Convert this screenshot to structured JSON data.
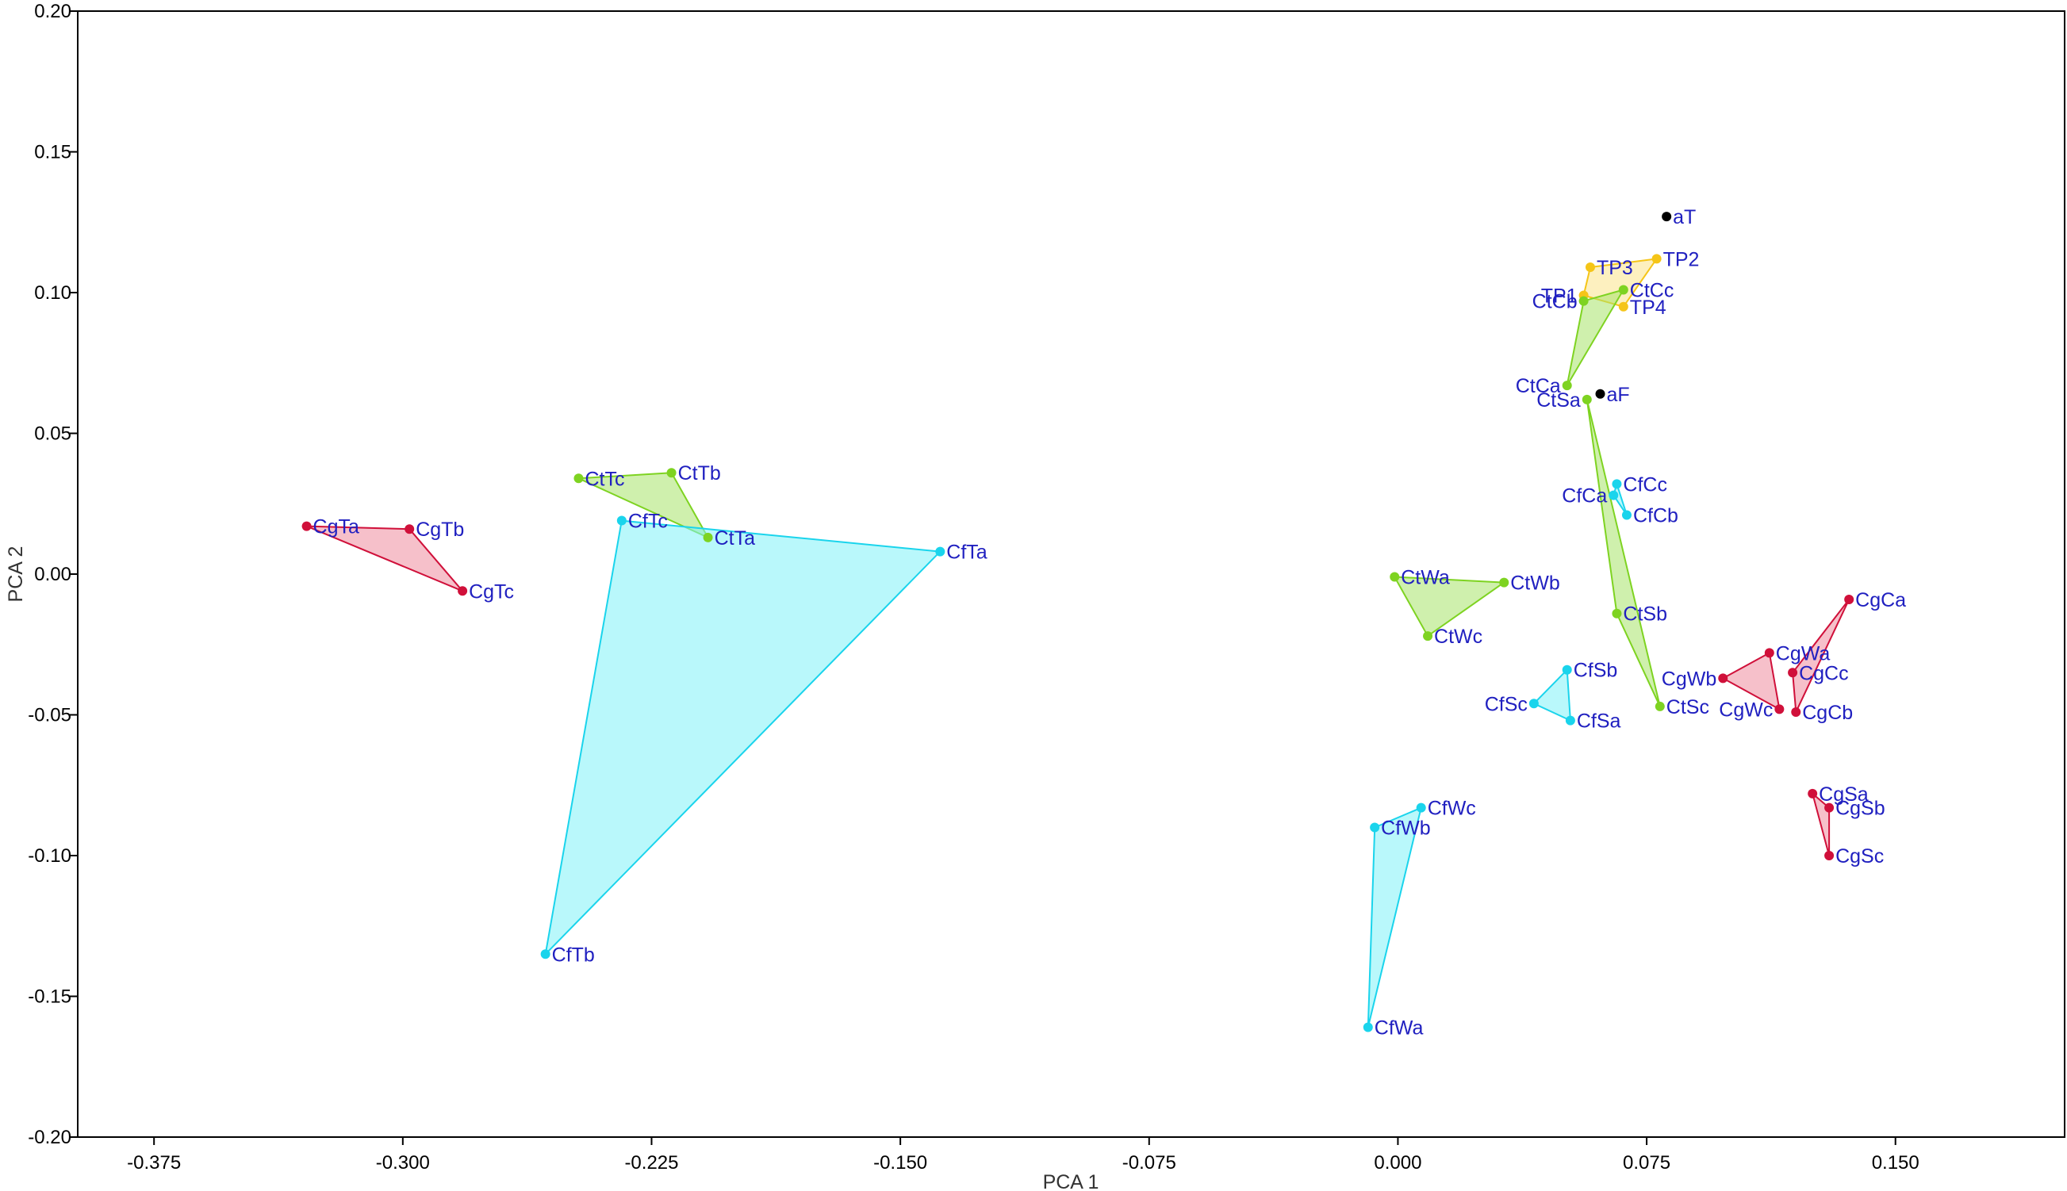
{
  "chart_data": {
    "type": "scatter",
    "title": "",
    "xlabel": "PCA 1",
    "ylabel": "PCA 2",
    "xlim": [
      -0.398,
      0.201
    ],
    "ylim": [
      -0.2,
      0.2
    ],
    "x_ticks": [
      {
        "value": -0.375,
        "label": "-0.375"
      },
      {
        "value": -0.3,
        "label": "-0.300"
      },
      {
        "value": -0.225,
        "label": "-0.225"
      },
      {
        "value": -0.15,
        "label": "-0.150"
      },
      {
        "value": -0.075,
        "label": "-0.075"
      },
      {
        "value": 0.0,
        "label": "0.000"
      },
      {
        "value": 0.075,
        "label": "0.075"
      },
      {
        "value": 0.15,
        "label": "0.150"
      }
    ],
    "y_ticks": [
      {
        "value": 0.2,
        "label": "0.20"
      },
      {
        "value": 0.15,
        "label": "0.15"
      },
      {
        "value": 0.1,
        "label": "0.10"
      },
      {
        "value": 0.05,
        "label": "0.05"
      },
      {
        "value": 0.0,
        "label": "0.00"
      },
      {
        "value": -0.05,
        "label": "-0.05"
      },
      {
        "value": -0.1,
        "label": "-0.10"
      },
      {
        "value": -0.15,
        "label": "-0.15"
      },
      {
        "value": -0.2,
        "label": "-0.20"
      }
    ],
    "grid": false,
    "legend": "none",
    "colors": {
      "Cg": {
        "point": "#d0103a",
        "fill": "#ee8c9e",
        "stroke": "#d0103a"
      },
      "Ct": {
        "point": "#7ed321",
        "fill": "#a8e46a",
        "stroke": "#7ed321"
      },
      "Cf": {
        "point": "#1ad4ec",
        "fill": "#7ff3f8",
        "stroke": "#1ad4ec"
      },
      "TP": {
        "point": "#f5c518",
        "fill": "#fbe38a",
        "stroke": "#f5c518"
      },
      "a": {
        "point": "#000000"
      }
    },
    "points": [
      {
        "label": "CgTa",
        "x": -0.329,
        "y": 0.017,
        "group": "Cg"
      },
      {
        "label": "CgTb",
        "x": -0.298,
        "y": 0.016,
        "group": "Cg"
      },
      {
        "label": "CgTc",
        "x": -0.282,
        "y": -0.006,
        "group": "Cg"
      },
      {
        "label": "CtTc",
        "x": -0.247,
        "y": 0.034,
        "group": "Ct"
      },
      {
        "label": "CtTb",
        "x": -0.219,
        "y": 0.036,
        "group": "Ct"
      },
      {
        "label": "CtTa",
        "x": -0.208,
        "y": 0.013,
        "group": "Ct"
      },
      {
        "label": "CfTc",
        "x": -0.234,
        "y": 0.019,
        "group": "Cf"
      },
      {
        "label": "CfTa",
        "x": -0.138,
        "y": 0.008,
        "group": "Cf"
      },
      {
        "label": "CfTb",
        "x": -0.257,
        "y": -0.135,
        "group": "Cf"
      },
      {
        "label": "aT",
        "x": 0.081,
        "y": 0.127,
        "group": "a"
      },
      {
        "label": "TP2",
        "x": 0.078,
        "y": 0.112,
        "group": "TP"
      },
      {
        "label": "TP3",
        "x": 0.058,
        "y": 0.109,
        "group": "TP"
      },
      {
        "label": "TP1",
        "x": 0.056,
        "y": 0.099,
        "group": "TP"
      },
      {
        "label": "TP4",
        "x": 0.068,
        "y": 0.095,
        "group": "TP"
      },
      {
        "label": "CtCb",
        "x": 0.056,
        "y": 0.097,
        "group": "Ct"
      },
      {
        "label": "CtCc",
        "x": 0.068,
        "y": 0.101,
        "group": "Ct"
      },
      {
        "label": "CtCa",
        "x": 0.051,
        "y": 0.067,
        "group": "Ct"
      },
      {
        "label": "aF",
        "x": 0.061,
        "y": 0.064,
        "group": "a"
      },
      {
        "label": "CtSa",
        "x": 0.057,
        "y": 0.062,
        "group": "Ct"
      },
      {
        "label": "CfCc",
        "x": 0.066,
        "y": 0.032,
        "group": "Cf"
      },
      {
        "label": "CfCa",
        "x": 0.065,
        "y": 0.028,
        "group": "Cf"
      },
      {
        "label": "CfCb",
        "x": 0.069,
        "y": 0.021,
        "group": "Cf"
      },
      {
        "label": "CtSb",
        "x": 0.066,
        "y": -0.014,
        "group": "Ct"
      },
      {
        "label": "CtSc",
        "x": 0.079,
        "y": -0.047,
        "group": "Ct"
      },
      {
        "label": "CtWa",
        "x": -0.001,
        "y": -0.001,
        "group": "Ct"
      },
      {
        "label": "CtWb",
        "x": 0.032,
        "y": -0.003,
        "group": "Ct"
      },
      {
        "label": "CtWc",
        "x": 0.009,
        "y": -0.022,
        "group": "Ct"
      },
      {
        "label": "CfSb",
        "x": 0.051,
        "y": -0.034,
        "group": "Cf"
      },
      {
        "label": "CfSc",
        "x": 0.041,
        "y": -0.046,
        "group": "Cf"
      },
      {
        "label": "CfSa",
        "x": 0.052,
        "y": -0.052,
        "group": "Cf"
      },
      {
        "label": "CfWc",
        "x": 0.007,
        "y": -0.083,
        "group": "Cf"
      },
      {
        "label": "CfWb",
        "x": -0.007,
        "y": -0.09,
        "group": "Cf"
      },
      {
        "label": "CfWa",
        "x": -0.009,
        "y": -0.161,
        "group": "Cf"
      },
      {
        "label": "CgCa",
        "x": 0.136,
        "y": -0.009,
        "group": "Cg"
      },
      {
        "label": "CgWa",
        "x": 0.112,
        "y": -0.028,
        "group": "Cg"
      },
      {
        "label": "CgWb",
        "x": 0.098,
        "y": -0.037,
        "group": "Cg"
      },
      {
        "label": "CgCc",
        "x": 0.119,
        "y": -0.035,
        "group": "Cg"
      },
      {
        "label": "CgWc",
        "x": 0.115,
        "y": -0.048,
        "group": "Cg"
      },
      {
        "label": "CgCb",
        "x": 0.12,
        "y": -0.049,
        "group": "Cg"
      },
      {
        "label": "CgSa",
        "x": 0.125,
        "y": -0.078,
        "group": "Cg"
      },
      {
        "label": "CgSb",
        "x": 0.13,
        "y": -0.083,
        "group": "Cg"
      },
      {
        "label": "CgSc",
        "x": 0.13,
        "y": -0.1,
        "group": "Cg"
      }
    ],
    "hulls": [
      {
        "group": "Cg",
        "members": [
          "CgTa",
          "CgTb",
          "CgTc"
        ]
      },
      {
        "group": "Ct",
        "members": [
          "CtTc",
          "CtTb",
          "CtTa"
        ]
      },
      {
        "group": "Cf",
        "members": [
          "CfTc",
          "CfTa",
          "CfTb"
        ]
      },
      {
        "group": "TP",
        "members": [
          "TP3",
          "TP2",
          "TP4",
          "TP1"
        ]
      },
      {
        "group": "Ct",
        "members": [
          "CtCb",
          "CtCc",
          "CtCa"
        ]
      },
      {
        "group": "Cf",
        "members": [
          "CfCc",
          "CfCb",
          "CfCa"
        ]
      },
      {
        "group": "Ct",
        "members": [
          "CtSa",
          "CtSc",
          "CtSb"
        ]
      },
      {
        "group": "Ct",
        "members": [
          "CtWa",
          "CtWb",
          "CtWc"
        ]
      },
      {
        "group": "Cf",
        "members": [
          "CfSb",
          "CfSa",
          "CfSc"
        ]
      },
      {
        "group": "Cf",
        "members": [
          "CfWc",
          "CfWa",
          "CfWb"
        ]
      },
      {
        "group": "Cg",
        "members": [
          "CgWb",
          "CgWa",
          "CgWc"
        ]
      },
      {
        "group": "Cg",
        "members": [
          "CgCa",
          "CgCc",
          "CgCb"
        ]
      },
      {
        "group": "Cg",
        "members": [
          "CgSa",
          "CgSb",
          "CgSc"
        ]
      }
    ]
  }
}
